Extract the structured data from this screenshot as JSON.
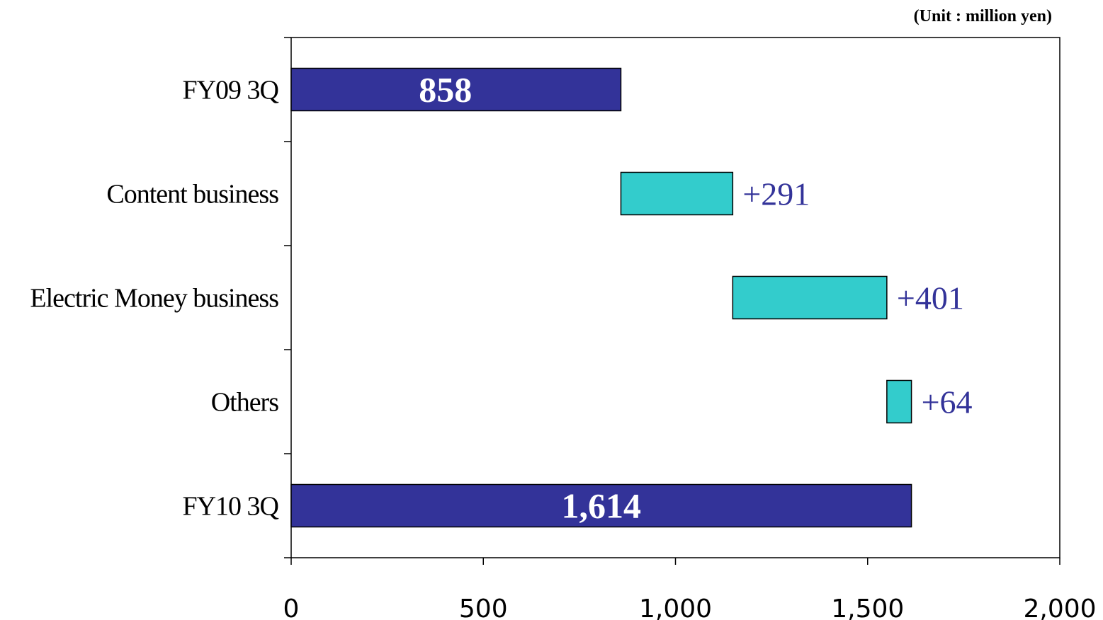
{
  "unit_note": "(Unit : million yen)",
  "colors": {
    "total_bar": "#333399",
    "delta_bar": "#33CCCC",
    "delta_label": "#333399",
    "axis": "#000000"
  },
  "chart_data": {
    "type": "bar",
    "orientation": "horizontal",
    "variant": "waterfall",
    "title": "",
    "xlabel": "",
    "ylabel": "",
    "xlim": [
      0,
      2000
    ],
    "x_ticks": [
      0,
      500,
      1000,
      1500,
      2000
    ],
    "x_tick_labels": [
      "0",
      "500",
      "1,000",
      "1,500",
      "2,000"
    ],
    "grid": false,
    "categories": [
      "FY09 3Q",
      "Content business",
      "Electric Money business",
      "Others",
      "FY10 3Q"
    ],
    "bars": [
      {
        "category": "FY09 3Q",
        "kind": "total",
        "start": 0,
        "end": 858,
        "label": "858"
      },
      {
        "category": "Content business",
        "kind": "delta",
        "start": 858,
        "end": 1149,
        "label": "+291"
      },
      {
        "category": "Electric Money business",
        "kind": "delta",
        "start": 1149,
        "end": 1550,
        "label": "+401"
      },
      {
        "category": "Others",
        "kind": "delta",
        "start": 1550,
        "end": 1614,
        "label": "+64"
      },
      {
        "category": "FY10 3Q",
        "kind": "total",
        "start": 0,
        "end": 1614,
        "label": "1,614"
      }
    ]
  }
}
